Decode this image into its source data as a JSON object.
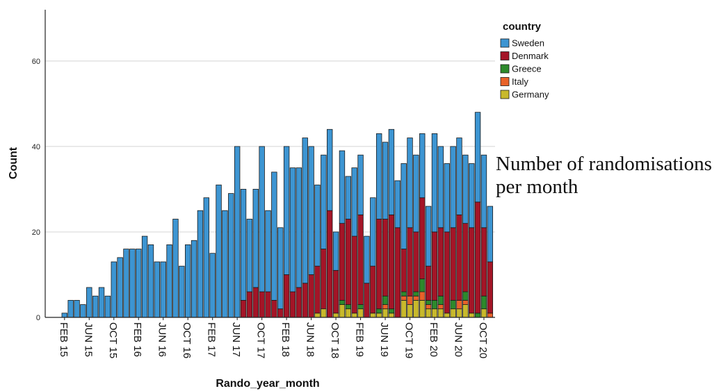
{
  "chart_data": {
    "type": "bar",
    "stacked": true,
    "xlabel": "Rando_year_month",
    "ylabel": "Count",
    "ylim": [
      0,
      72
    ],
    "y_ticks": [
      0,
      20,
      40,
      60
    ],
    "grid": "horizontal",
    "legend_title": "country",
    "legend_position": "top-right",
    "x_tick_labels": [
      "FEB 15",
      "JUN 15",
      "OCT 15",
      "FEB 16",
      "JUN 16",
      "OCT 16",
      "FEB 17",
      "JUN 17",
      "OCT 17",
      "FEB 18",
      "JUN 18",
      "OCT 18",
      "FEB 19",
      "JUN 19",
      "OCT 19",
      "FEB 20",
      "JUN 20",
      "OCT 20"
    ],
    "x_tick_months": [
      "2015-02",
      "2015-06",
      "2015-10",
      "2016-02",
      "2016-06",
      "2016-10",
      "2017-02",
      "2017-06",
      "2017-10",
      "2018-02",
      "2018-06",
      "2018-10",
      "2019-02",
      "2019-06",
      "2019-10",
      "2020-02",
      "2020-06",
      "2020-10"
    ],
    "categories": [
      "2015-02",
      "2015-03",
      "2015-04",
      "2015-05",
      "2015-06",
      "2015-07",
      "2015-08",
      "2015-09",
      "2015-10",
      "2015-11",
      "2015-12",
      "2016-01",
      "2016-02",
      "2016-03",
      "2016-04",
      "2016-05",
      "2016-06",
      "2016-07",
      "2016-08",
      "2016-09",
      "2016-10",
      "2016-11",
      "2016-12",
      "2017-01",
      "2017-02",
      "2017-03",
      "2017-04",
      "2017-05",
      "2017-06",
      "2017-07",
      "2017-08",
      "2017-09",
      "2017-10",
      "2017-11",
      "2017-12",
      "2018-01",
      "2018-02",
      "2018-03",
      "2018-04",
      "2018-05",
      "2018-06",
      "2018-07",
      "2018-08",
      "2018-09",
      "2018-10",
      "2018-11",
      "2018-12",
      "2019-01",
      "2019-02",
      "2019-03",
      "2019-04",
      "2019-05",
      "2019-06",
      "2019-07",
      "2019-08",
      "2019-09",
      "2019-10",
      "2019-11",
      "2019-12",
      "2020-01",
      "2020-02",
      "2020-03",
      "2020-04",
      "2020-05",
      "2020-06",
      "2020-07",
      "2020-08",
      "2020-09",
      "2020-10",
      "2020-11"
    ],
    "series": [
      {
        "name": "Sweden",
        "color": "#3d95d2",
        "values": [
          1,
          4,
          4,
          3,
          7,
          5,
          7,
          5,
          13,
          14,
          16,
          16,
          16,
          19,
          17,
          13,
          13,
          17,
          23,
          12,
          17,
          18,
          25,
          28,
          15,
          31,
          25,
          29,
          40,
          26,
          17,
          23,
          34,
          19,
          30,
          19,
          30,
          29,
          28,
          34,
          30,
          19,
          22,
          19,
          9,
          17,
          10,
          16,
          14,
          11,
          16,
          20,
          18,
          20,
          11,
          20,
          21,
          18,
          15,
          14,
          23,
          19,
          16,
          19,
          18,
          16,
          15,
          21,
          17,
          13
        ]
      },
      {
        "name": "Denmark",
        "color": "#a41527",
        "values": [
          0,
          0,
          0,
          0,
          0,
          0,
          0,
          0,
          0,
          0,
          0,
          0,
          0,
          0,
          0,
          0,
          0,
          0,
          0,
          0,
          0,
          0,
          0,
          0,
          0,
          0,
          0,
          0,
          0,
          4,
          6,
          7,
          6,
          6,
          4,
          2,
          10,
          6,
          7,
          8,
          10,
          11,
          14,
          25,
          10,
          18,
          20,
          18,
          21,
          8,
          11,
          21,
          18,
          22,
          21,
          10,
          16,
          14,
          19,
          8,
          16,
          16,
          19,
          17,
          20,
          16,
          20,
          26,
          16,
          12
        ]
      },
      {
        "name": "Greece",
        "color": "#2d8a2c",
        "values": [
          0,
          0,
          0,
          0,
          0,
          0,
          0,
          0,
          0,
          0,
          0,
          0,
          0,
          0,
          0,
          0,
          0,
          0,
          0,
          0,
          0,
          0,
          0,
          0,
          0,
          0,
          0,
          0,
          0,
          0,
          0,
          0,
          0,
          0,
          0,
          0,
          0,
          0,
          0,
          0,
          0,
          0,
          0,
          0,
          0,
          1,
          1,
          0,
          1,
          0,
          0,
          1,
          2,
          1,
          0,
          1,
          0,
          1,
          3,
          1,
          2,
          2,
          0,
          2,
          0,
          2,
          0,
          1,
          3,
          0
        ]
      },
      {
        "name": "Italy",
        "color": "#e8622a",
        "values": [
          0,
          0,
          0,
          0,
          0,
          0,
          0,
          0,
          0,
          0,
          0,
          0,
          0,
          0,
          0,
          0,
          0,
          0,
          0,
          0,
          0,
          0,
          0,
          0,
          0,
          0,
          0,
          0,
          0,
          0,
          0,
          0,
          0,
          0,
          0,
          0,
          0,
          0,
          0,
          0,
          0,
          0,
          0,
          0,
          0,
          0,
          0,
          0,
          0,
          0,
          0,
          0,
          1,
          0,
          0,
          1,
          2,
          1,
          2,
          1,
          0,
          1,
          0,
          0,
          2,
          1,
          0,
          0,
          0,
          1
        ]
      },
      {
        "name": "Germany",
        "color": "#c8b92c",
        "values": [
          0,
          0,
          0,
          0,
          0,
          0,
          0,
          0,
          0,
          0,
          0,
          0,
          0,
          0,
          0,
          0,
          0,
          0,
          0,
          0,
          0,
          0,
          0,
          0,
          0,
          0,
          0,
          0,
          0,
          0,
          0,
          0,
          0,
          0,
          0,
          0,
          0,
          0,
          0,
          0,
          0,
          1,
          2,
          0,
          1,
          3,
          2,
          1,
          2,
          0,
          1,
          1,
          2,
          1,
          0,
          4,
          3,
          4,
          4,
          2,
          2,
          2,
          1,
          2,
          2,
          3,
          1,
          0,
          2,
          0
        ]
      }
    ]
  },
  "side_note": {
    "line1": "Number of randomisations",
    "line2": "per month"
  }
}
